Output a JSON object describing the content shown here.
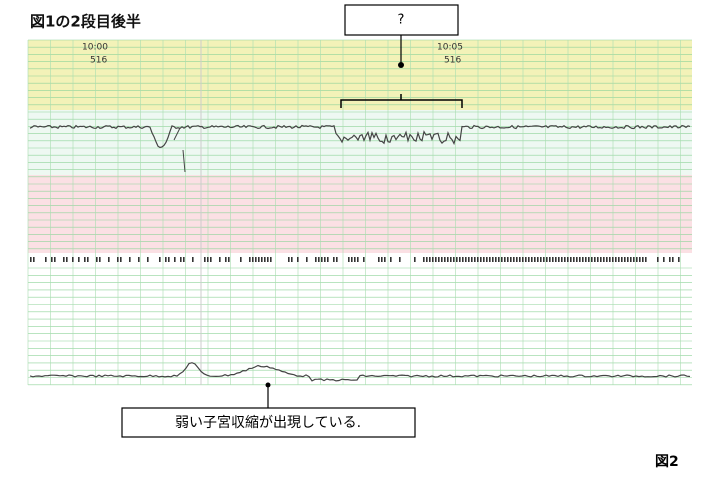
{
  "header": {
    "title": "図1の2段目後半"
  },
  "trace": {
    "marks": [
      {
        "time": "10:00",
        "code": "516"
      },
      {
        "time": "10:05",
        "code": "516"
      }
    ]
  },
  "annotations": {
    "question": "?",
    "contraction_note": "弱い子宮収縮が出現している."
  },
  "figure_label": "図2"
}
